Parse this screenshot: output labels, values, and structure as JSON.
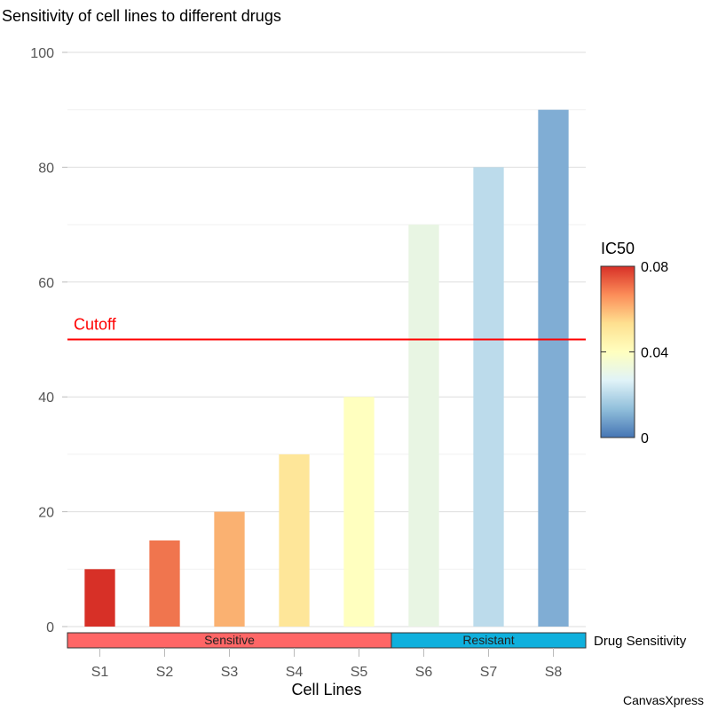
{
  "chart_data": {
    "type": "bar",
    "title": "Sensitivity of cell lines to different drugs",
    "xlabel": "Cell Lines",
    "ylabel": "",
    "ylim": [
      0,
      100
    ],
    "yticks": [
      0,
      20,
      40,
      60,
      80,
      100
    ],
    "minor_grid_step": 10,
    "grid": true,
    "categories": [
      "S1",
      "S2",
      "S3",
      "S4",
      "S5",
      "S6",
      "S7",
      "S8"
    ],
    "values": [
      10,
      15,
      20,
      30,
      40,
      70,
      80,
      90
    ],
    "bar_colors": [
      "#d73027",
      "#f0754e",
      "#fab171",
      "#fee699",
      "#ffffbf",
      "#e8f5e3",
      "#bcdbeb",
      "#80add4"
    ],
    "color_legend": {
      "title": "IC50",
      "position": "right",
      "min": 0,
      "max": 0.08,
      "ticks": [
        "0",
        "0.04",
        "0.08"
      ],
      "gradient": [
        "#4575b4",
        "#91bfdb",
        "#e0f3f8",
        "#ffffbf",
        "#fee090",
        "#fc8d59",
        "#d73027"
      ]
    },
    "reference_line": {
      "label": "Cutoff",
      "value": 50,
      "color": "#ff0000"
    },
    "annotation_track": {
      "title": "Drug Sensitivity",
      "groups": [
        {
          "label": "Sensitive",
          "from": "S1",
          "to": "S5",
          "color": "#ff6666"
        },
        {
          "label": "Resistant",
          "from": "S6",
          "to": "S8",
          "color": "#0fb0dd"
        }
      ]
    },
    "watermark": "CanvasXpress"
  }
}
